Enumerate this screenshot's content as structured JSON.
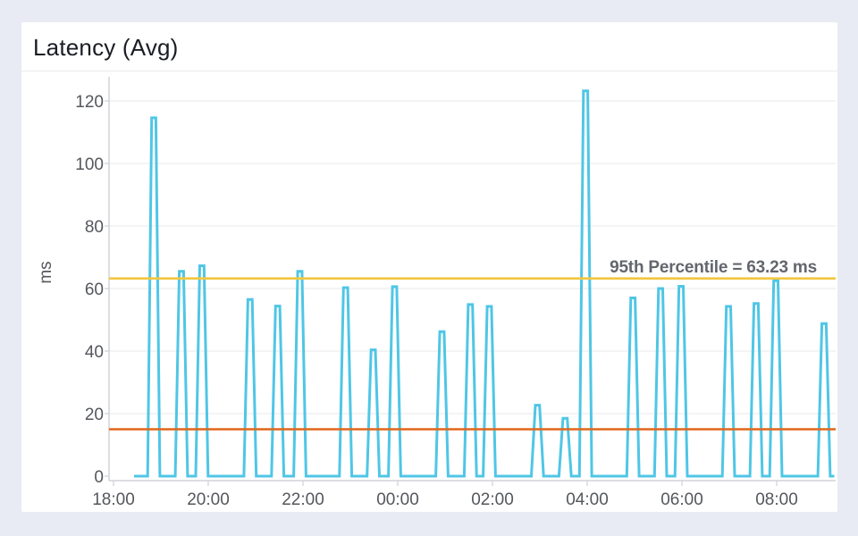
{
  "page": {
    "background_color": "#e8ebf3"
  },
  "card": {
    "background_color": "#ffffff"
  },
  "chart_data": {
    "type": "line",
    "title": "Latency (Avg)",
    "xlabel": "",
    "ylabel": "ms",
    "x_tick_labels": [
      "18:00",
      "20:00",
      "22:00",
      "00:00",
      "02:00",
      "04:00",
      "06:00",
      "08:00"
    ],
    "x_tick_interval_hours": 2,
    "y_tick_values": [
      0,
      20,
      40,
      60,
      80,
      100,
      120
    ],
    "ylim": [
      0,
      126
    ],
    "grid": "horizontal",
    "legend_position": "none",
    "tick_label_color": "#54575c",
    "series": [
      {
        "name": "Latency (Avg)",
        "color": "#4FC6E6",
        "baseline_value": 0,
        "start_time": "18:26",
        "end_time": "09:13",
        "spikes": [
          {
            "time": "18:51",
            "value": 114.6
          },
          {
            "time": "19:26",
            "value": 65.5
          },
          {
            "time": "19:52",
            "value": 67.3
          },
          {
            "time": "20:53",
            "value": 56.5
          },
          {
            "time": "21:28",
            "value": 54.4
          },
          {
            "time": "21:56",
            "value": 65.5
          },
          {
            "time": "22:54",
            "value": 60.3
          },
          {
            "time": "23:29",
            "value": 40.4
          },
          {
            "time": "23:56",
            "value": 60.6
          },
          {
            "time": "00:56",
            "value": 46.2
          },
          {
            "time": "01:32",
            "value": 54.9
          },
          {
            "time": "01:56",
            "value": 54.3
          },
          {
            "time": "02:57",
            "value": 22.7
          },
          {
            "time": "03:32",
            "value": 18.5
          },
          {
            "time": "03:58",
            "value": 123.2
          },
          {
            "time": "04:58",
            "value": 57
          },
          {
            "time": "05:33",
            "value": 60
          },
          {
            "time": "05:59",
            "value": 60.7
          },
          {
            "time": "06:59",
            "value": 54.3
          },
          {
            "time": "07:34",
            "value": 55.2
          },
          {
            "time": "07:59",
            "value": 62.5
          },
          {
            "time": "09:00",
            "value": 48.8
          }
        ]
      }
    ],
    "reference_lines": [
      {
        "name": "p95",
        "label": "95th Percentile = 63.23 ms",
        "value": 63.23,
        "color": "#F2C73E"
      },
      {
        "name": "threshold",
        "label": "",
        "value": 15,
        "color": "#E2661C"
      }
    ]
  }
}
